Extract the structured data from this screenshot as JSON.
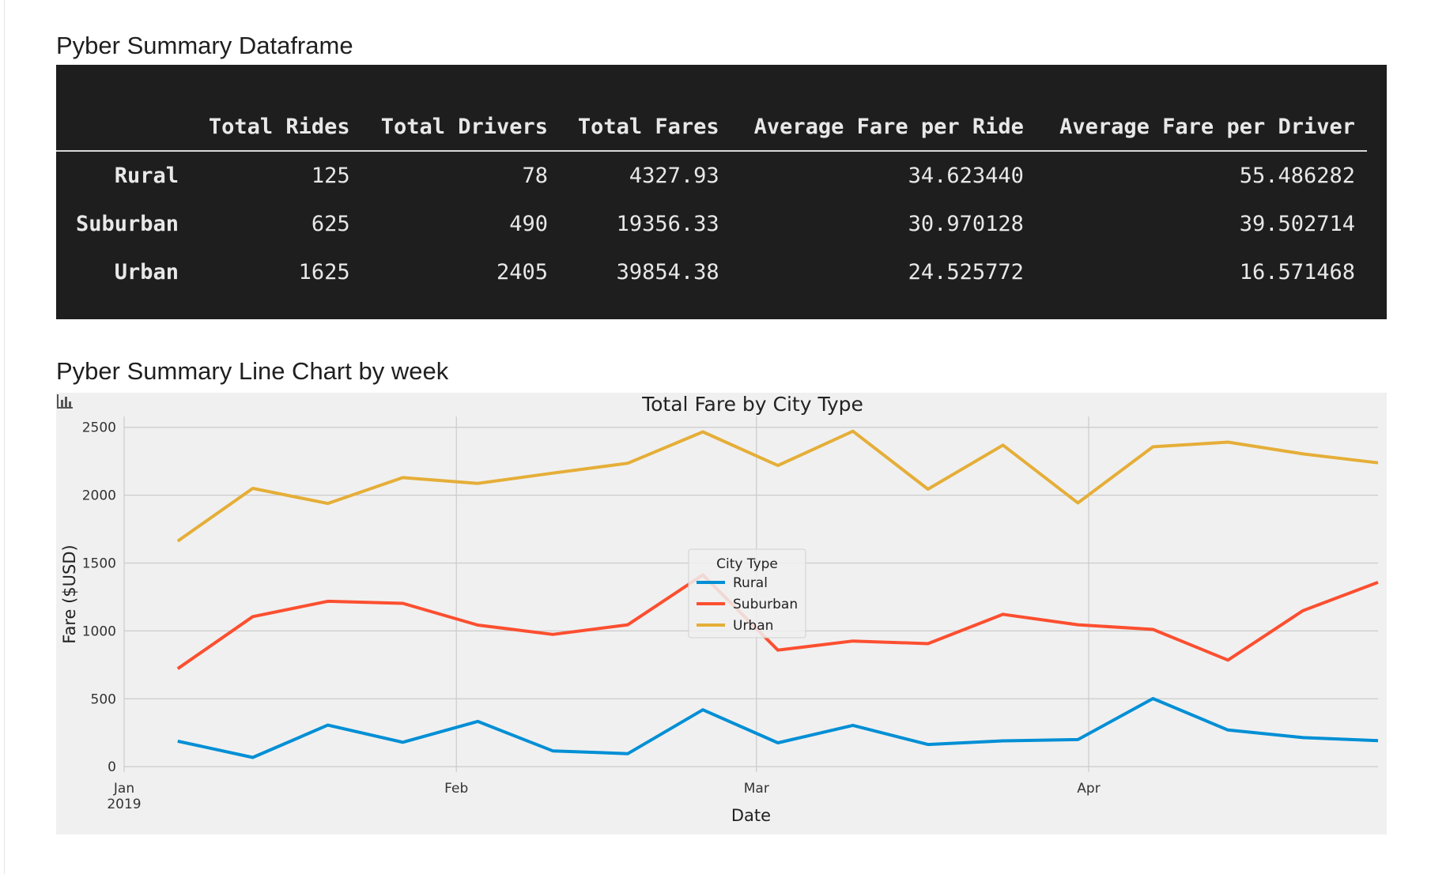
{
  "dataframe": {
    "title": "Pyber Summary Dataframe",
    "columns": [
      "Total Rides",
      "Total Drivers",
      "Total Fares",
      "Average Fare per Ride",
      "Average Fare per Driver"
    ],
    "rows": [
      {
        "label": "Rural",
        "values": [
          "125",
          "78",
          "4327.93",
          "34.623440",
          "55.486282"
        ]
      },
      {
        "label": "Suburban",
        "values": [
          "625",
          "490",
          "19356.33",
          "30.970128",
          "39.502714"
        ]
      },
      {
        "label": "Urban",
        "values": [
          "1625",
          "2405",
          "39854.38",
          "24.525772",
          "16.571468"
        ]
      }
    ]
  },
  "chart_section": {
    "title": "Pyber Summary Line Chart by week",
    "menu_icon": "bar-chart-icon"
  },
  "chart_data": {
    "type": "line",
    "title": "Total Fare by City Type",
    "xlabel": "Date",
    "ylabel": "Fare ($USD)",
    "x": [
      "2019-01-06",
      "2019-01-13",
      "2019-01-20",
      "2019-01-27",
      "2019-02-03",
      "2019-02-10",
      "2019-02-17",
      "2019-02-24",
      "2019-03-03",
      "2019-03-10",
      "2019-03-17",
      "2019-03-24",
      "2019-03-31",
      "2019-04-07",
      "2019-04-14",
      "2019-04-21",
      "2019-04-28"
    ],
    "x_ticks": [
      {
        "date": "2019-01-01",
        "label": "Jan",
        "sublabel": "2019"
      },
      {
        "date": "2019-02-01",
        "label": "Feb",
        "sublabel": ""
      },
      {
        "date": "2019-03-01",
        "label": "Mar",
        "sublabel": ""
      },
      {
        "date": "2019-04-01",
        "label": "Apr",
        "sublabel": ""
      }
    ],
    "xlim": [
      "2019-01-01",
      "2019-04-28"
    ],
    "yticks": [
      0,
      500,
      1000,
      1500,
      2000,
      2500
    ],
    "ylim": [
      -40,
      2580
    ],
    "grid": true,
    "legend": {
      "title": "City Type",
      "placement": "center"
    },
    "series": [
      {
        "name": "Rural",
        "color": "#008fd5",
        "values": [
          187.92,
          67.65,
          306.0,
          179.5,
          333.08,
          115.8,
          95.82,
          419.06,
          175.14,
          303.94,
          163.39,
          189.76,
          199.42,
          501.24,
          269.79,
          214.14,
          191.85
        ]
      },
      {
        "name": "Suburban",
        "color": "#fc4f30",
        "values": [
          721.6,
          1105.13,
          1218.2,
          1203.28,
          1042.79,
          974.34,
          1045.5,
          1412.74,
          858.46,
          925.27,
          906.2,
          1122.2,
          1045.06,
          1010.73,
          784.82,
          1149.27,
          1357.75
        ]
      },
      {
        "name": "Urban",
        "color": "#e5ae38",
        "values": [
          1661.68,
          2050.43,
          1939.02,
          2129.51,
          2086.94,
          2162.64,
          2235.07,
          2466.29,
          2218.2,
          2470.93,
          2044.42,
          2368.37,
          1942.94,
          2356.7,
          2390.5,
          2303.8,
          2238.29
        ]
      }
    ]
  }
}
